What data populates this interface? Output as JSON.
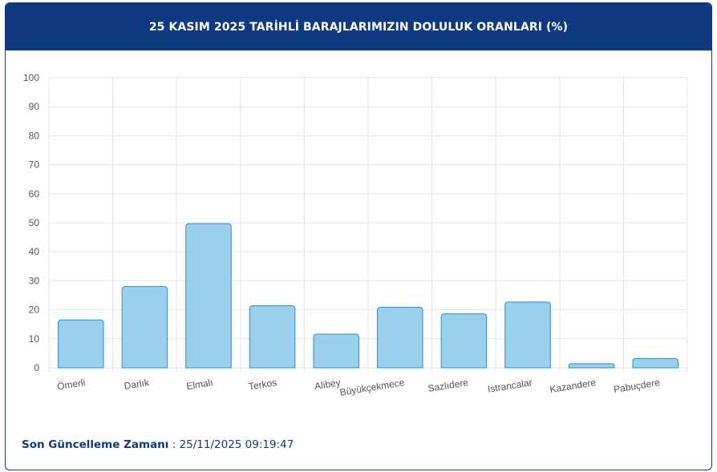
{
  "header": {
    "title": "25 KASIM 2025 TARİHLİ BARAJLARIMIZIN DOLULUK ORANLARI (%)"
  },
  "footer": {
    "label": "Son Güncelleme Zamanı",
    "separator": " : ",
    "value": "25/11/2025 09:19:47"
  },
  "colors": {
    "header_bg": "#0f3a82",
    "bar_fill": "#9bd0ec",
    "bar_stroke": "#2b8fc9",
    "grid": "#e3e3e3",
    "tick_text": "#555555"
  },
  "chart_data": {
    "type": "bar",
    "title": "25 KASIM 2025 TARİHLİ BARAJLARIMIZIN DOLULUK ORANLARI (%)",
    "xlabel": "",
    "ylabel": "",
    "ylim": [
      0,
      100
    ],
    "yticks": [
      0,
      10,
      20,
      30,
      40,
      50,
      60,
      70,
      80,
      90,
      100
    ],
    "grid": true,
    "legend": "none",
    "categories": [
      "Ömerli",
      "Darlık",
      "Elmalı",
      "Terkos",
      "Alibey",
      "Büyükçekmece",
      "Sazlıdere",
      "Istrancalar",
      "Kazandere",
      "Pabuçdere"
    ],
    "values": [
      16.5,
      28.0,
      49.7,
      21.4,
      11.6,
      20.9,
      18.6,
      22.7,
      1.4,
      3.2
    ]
  }
}
